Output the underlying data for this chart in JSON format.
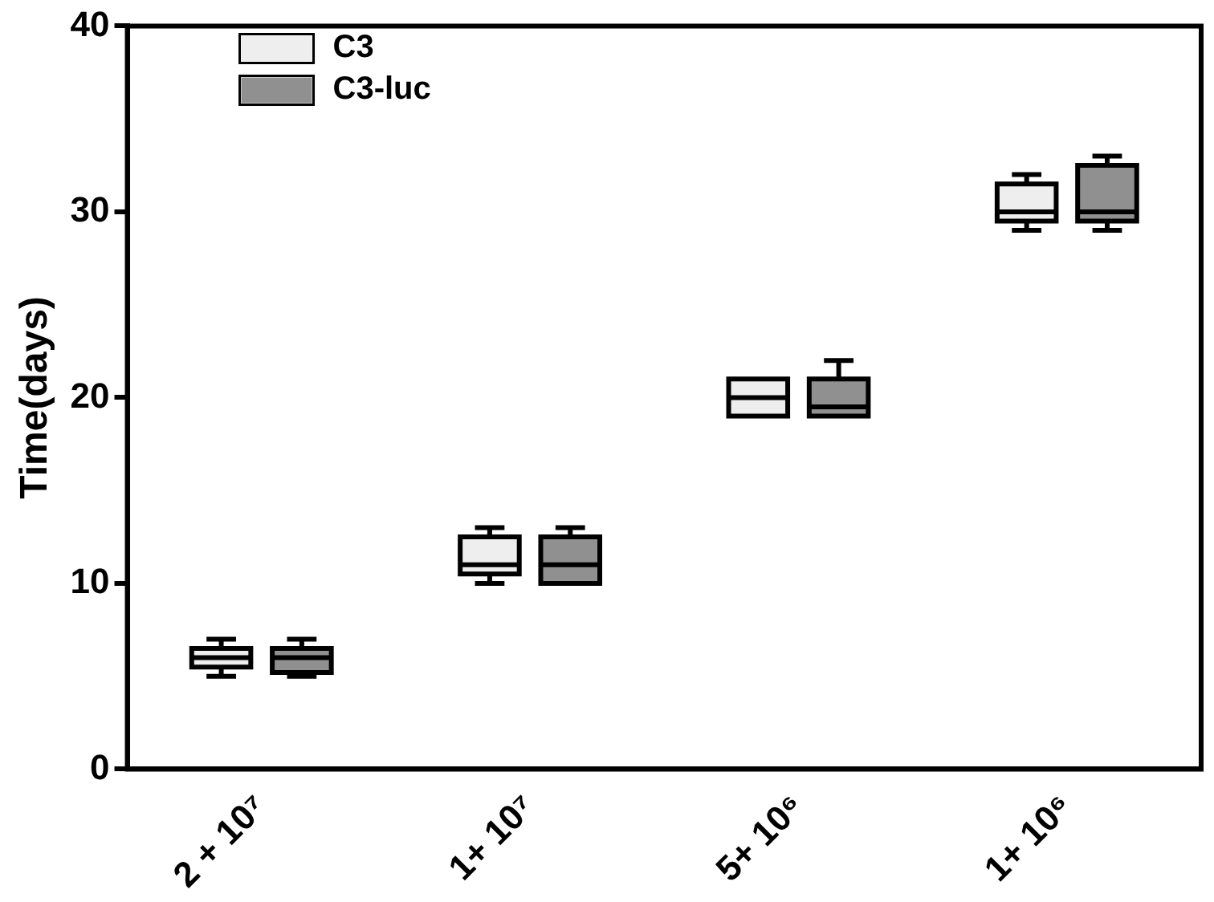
{
  "chart_data": {
    "type": "box",
    "ylabel": "Time(days)",
    "categories": [
      "2 + 10⁷",
      "1+ 10⁷",
      "5+ 10⁶",
      "1+ 10⁶"
    ],
    "ylim": [
      0,
      40
    ],
    "yticks": [
      0,
      10,
      20,
      30,
      40
    ],
    "grid": false,
    "legend": "top left",
    "series": [
      {
        "name": "C3",
        "color": "#eeeeee",
        "boxes": [
          {
            "low": 5,
            "q1": 5.5,
            "median": 6,
            "q3": 6.5,
            "high": 7
          },
          {
            "low": 10,
            "q1": 10.5,
            "median": 11,
            "q3": 12.5,
            "high": 13
          },
          {
            "low": 19,
            "q1": 19,
            "median": 20,
            "q3": 21,
            "high": 21
          },
          {
            "low": 29,
            "q1": 29.5,
            "median": 30,
            "q3": 31.5,
            "high": 32
          }
        ]
      },
      {
        "name": "C3-luc",
        "color": "#909090",
        "boxes": [
          {
            "low": 5,
            "q1": 5.2,
            "median": 6,
            "q3": 6.5,
            "high": 7
          },
          {
            "low": 10,
            "q1": 10,
            "median": 11,
            "q3": 12.5,
            "high": 13
          },
          {
            "low": 19,
            "q1": 19,
            "median": 19.5,
            "q3": 21,
            "high": 22
          },
          {
            "low": 29,
            "q1": 29.5,
            "median": 30,
            "q3": 32.5,
            "high": 33
          }
        ]
      }
    ]
  }
}
